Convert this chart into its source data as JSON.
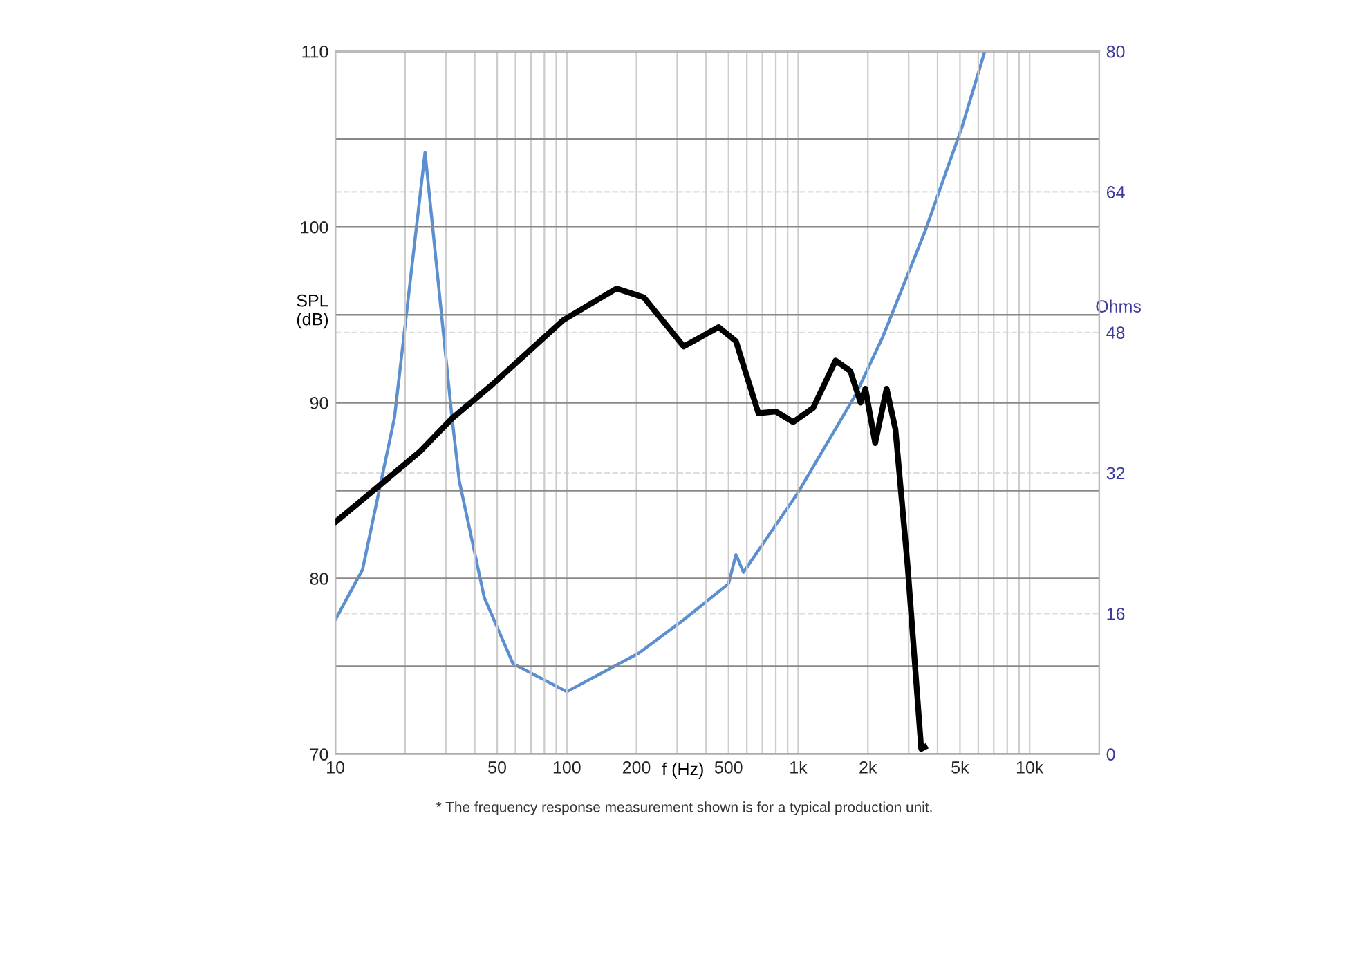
{
  "chart_data": {
    "type": "line",
    "xlabel": "f (Hz)",
    "ylabel": "SPL\n(dB)",
    "y2label": "Ohms",
    "log": "x",
    "xlim": [
      10,
      20000
    ],
    "xticks": [
      10,
      {
        "value": 20,
        "label": null
      },
      {
        "value": 30,
        "label": null
      },
      {
        "value": 40,
        "label": null
      },
      50,
      {
        "value": 60,
        "label": null
      },
      {
        "value": 70,
        "label": null
      },
      {
        "value": 80,
        "label": null
      },
      {
        "value": 90,
        "label": null
      },
      100,
      200,
      {
        "value": 300,
        "label": null
      },
      {
        "value": 400,
        "label": null
      },
      500,
      {
        "value": 600,
        "label": null
      },
      {
        "value": 700,
        "label": null
      },
      {
        "value": 800,
        "label": null
      },
      {
        "value": 900,
        "label": null
      },
      {
        "value": 1000,
        "label": "1k"
      },
      {
        "value": 2000,
        "label": "2k"
      },
      {
        "value": 3000,
        "label": null
      },
      {
        "value": 4000,
        "label": null
      },
      {
        "value": 5000,
        "label": "5k"
      },
      {
        "value": 6000,
        "label": null
      },
      {
        "value": 7000,
        "label": null
      },
      {
        "value": 8000,
        "label": null
      },
      {
        "value": 9000,
        "label": null
      },
      {
        "value": 10000,
        "label": "10k"
      }
    ],
    "ylim": [
      70,
      110
    ],
    "yticks": [
      70,
      {
        "value": 75,
        "label": null
      },
      80,
      {
        "value": 85,
        "label": null
      },
      90,
      {
        "value": 95,
        "label": null
      },
      100,
      {
        "value": 105,
        "label": null
      },
      110
    ],
    "y2lim": [
      0,
      80
    ],
    "y2ticks": [
      0,
      16,
      32,
      48,
      64,
      80
    ],
    "grid": true,
    "line_style": "solid",
    "marker": "none",
    "series": [
      {
        "color": "#000000",
        "x": [
          10,
          16.2,
          23.1,
          31.9,
          47.3,
          96.5,
          164,
          215,
          320,
          453,
          538,
          673,
          800,
          951,
          1160,
          1450,
          1680,
          1860,
          1950,
          2150,
          2410,
          2630,
          2970,
          3400,
          3520
        ],
        "values": [
          83.2,
          85.5,
          87.2,
          89.1,
          91.0,
          94.7,
          96.5,
          96.0,
          93.2,
          94.3,
          93.5,
          89.4,
          89.5,
          88.9,
          89.7,
          92.4,
          91.8,
          90.0,
          90.8,
          87.7,
          90.8,
          88.5,
          80.7,
          70.3,
          70.4
        ]
      },
      {
        "color": "#5b8fd0",
        "axis": "y2",
        "x": [
          10,
          13.1,
          18.0,
          24.4,
          31.9,
          34.3,
          44.0,
          58.5,
          100,
          205,
          320,
          500,
          538,
          580,
          1000,
          1770,
          2320,
          3530,
          5120,
          6400
        ],
        "values": [
          15.3,
          21,
          38.3,
          68.5,
          38.3,
          31.1,
          17.8,
          10.3,
          7.1,
          11.5,
          15.3,
          19.4,
          22.7,
          20.7,
          29.8,
          40.9,
          47.5,
          59.5,
          71.5,
          80
        ]
      }
    ],
    "annotations": [
      "* The frequency response measurement shown is for a typical production unit."
    ]
  }
}
